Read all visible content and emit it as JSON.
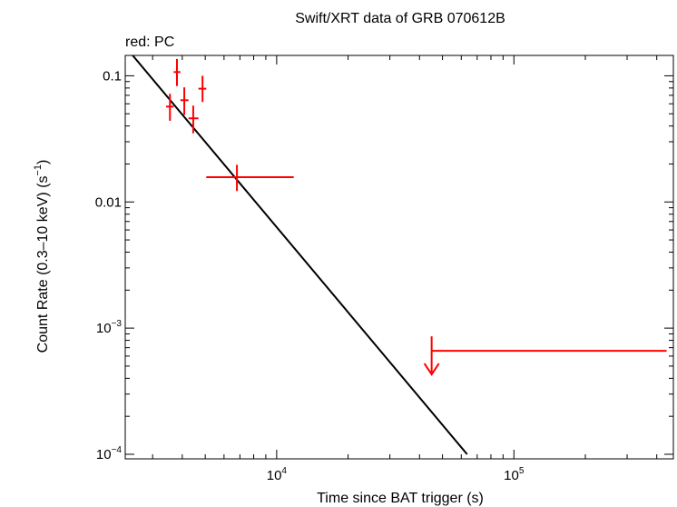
{
  "chart_data": {
    "type": "scatter",
    "title": "Swift/XRT data of GRB 070612B",
    "subtitle": "red: PC",
    "xlabel": "Time since BAT trigger (s)",
    "ylabel": "Count Rate (0.3–10 keV) (s",
    "ylabel_sup": "−1",
    "ylabel_close": ")",
    "x_scale": "log",
    "y_scale": "log",
    "xlim": [
      2300,
      470000
    ],
    "ylim": [
      9.2e-05,
      0.145
    ],
    "grid": false,
    "x_ticks": [
      {
        "value": 10000,
        "base": "10",
        "exp": "4"
      },
      {
        "value": 100000,
        "base": "10",
        "exp": "5"
      }
    ],
    "y_ticks": [
      {
        "value": 0.1,
        "base": "0.1",
        "exp": ""
      },
      {
        "value": 0.01,
        "base": "0.01",
        "exp": ""
      },
      {
        "value": 0.001,
        "base": "10",
        "exp": "−3"
      },
      {
        "value": 0.0001,
        "base": "10",
        "exp": "−4"
      }
    ],
    "series": [
      {
        "mode": "PC",
        "color": "#ff0000",
        "points": [
          {
            "x": 3550,
            "xerr": [
              3420,
              3680
            ],
            "y": 0.057,
            "yerr": [
              0.044,
              0.072
            ]
          },
          {
            "x": 3800,
            "xerr": [
              3680,
              3930
            ],
            "y": 0.107,
            "yerr": [
              0.083,
              0.136
            ]
          },
          {
            "x": 4080,
            "xerr": [
              3930,
              4250
            ],
            "y": 0.064,
            "yerr": [
              0.049,
              0.081
            ]
          },
          {
            "x": 4450,
            "xerr": [
              4250,
              4680
            ],
            "y": 0.046,
            "yerr": [
              0.035,
              0.058
            ]
          },
          {
            "x": 4870,
            "xerr": [
              4680,
              5050
            ],
            "y": 0.079,
            "yerr": [
              0.062,
              0.1
            ]
          },
          {
            "x": 6800,
            "xerr": [
              5050,
              11800
            ],
            "y": 0.0157,
            "yerr": [
              0.0122,
              0.0197
            ]
          }
        ],
        "upper_limits": [
          {
            "x": 45000,
            "xerr": [
              45000,
              440000
            ],
            "y": 0.00066,
            "arrow_to": 0.00043
          }
        ]
      }
    ],
    "model_line": {
      "color": "#000000",
      "points": [
        [
          2400,
          0.155
        ],
        [
          63500,
          0.0001
        ]
      ]
    }
  }
}
